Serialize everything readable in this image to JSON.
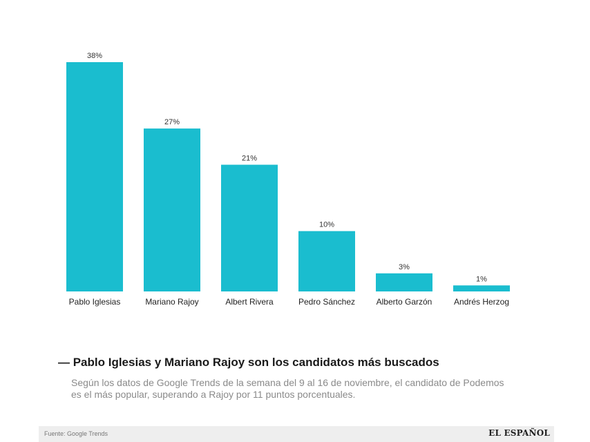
{
  "chart_data": {
    "type": "bar",
    "categories": [
      "Pablo Iglesias",
      "Mariano Rajoy",
      "Albert Rivera",
      "Pedro Sánchez",
      "Alberto Garzón",
      "Andrés Herzog"
    ],
    "values": [
      38,
      27,
      21,
      10,
      3,
      1
    ],
    "value_labels": [
      "38%",
      "27%",
      "21%",
      "10%",
      "3%",
      "1%"
    ],
    "ylim": [
      0,
      38
    ],
    "grid": false,
    "colors": {
      "bar": "#1ABDCF"
    }
  },
  "headline": "— Pablo Iglesias y Mariano Rajoy son los candidatos más buscados",
  "description": "Según los datos de Google Trends de la semana del 9 al 16 de noviembre, el candidato de Podemos es el más popular, superando a Rajoy por 11 puntos porcentuales.",
  "footer": {
    "source": "Fuente: Google Trends",
    "logo": "EL ESPAÑOL"
  }
}
